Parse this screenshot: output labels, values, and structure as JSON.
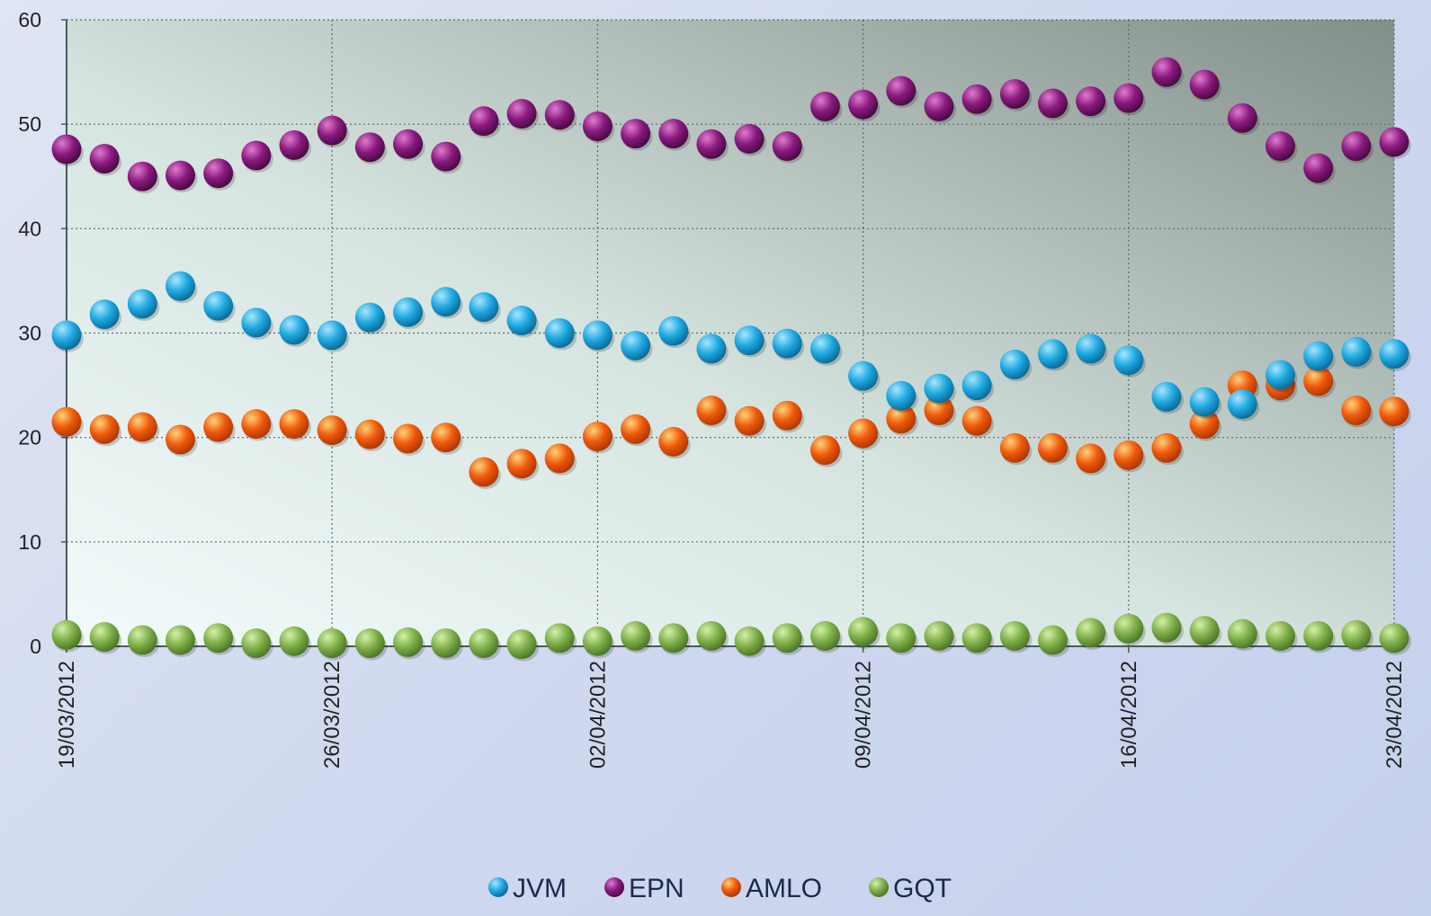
{
  "chart_data": {
    "type": "scatter",
    "title": "",
    "xlabel": "",
    "ylabel": "",
    "ylim": [
      0,
      60
    ],
    "y_ticks": [
      0,
      10,
      20,
      30,
      40,
      50,
      60
    ],
    "x_range": [
      "2012-03-19",
      "2012-04-23"
    ],
    "x_tick_labels": [
      "19/03/2012",
      "26/03/2012",
      "02/04/2012",
      "09/04/2012",
      "16/04/2012",
      "23/04/2012"
    ],
    "x": [
      "2012-03-19",
      "2012-03-20",
      "2012-03-21",
      "2012-03-22",
      "2012-03-23",
      "2012-03-24",
      "2012-03-25",
      "2012-03-26",
      "2012-03-27",
      "2012-03-28",
      "2012-03-29",
      "2012-03-30",
      "2012-03-31",
      "2012-04-01",
      "2012-04-02",
      "2012-04-03",
      "2012-04-04",
      "2012-04-05",
      "2012-04-06",
      "2012-04-07",
      "2012-04-08",
      "2012-04-09",
      "2012-04-10",
      "2012-04-11",
      "2012-04-12",
      "2012-04-13",
      "2012-04-14",
      "2012-04-15",
      "2012-04-16",
      "2012-04-17",
      "2012-04-18",
      "2012-04-19",
      "2012-04-20",
      "2012-04-21",
      "2012-04-22",
      "2012-04-23"
    ],
    "grid": true,
    "legend_position": "bottom",
    "series": [
      {
        "name": "JVM",
        "color": "#1fa9e1",
        "values": [
          29.8,
          31.8,
          32.8,
          34.5,
          32.6,
          31.0,
          30.3,
          29.8,
          31.5,
          32.0,
          33.0,
          32.5,
          31.2,
          30.0,
          29.8,
          28.8,
          30.2,
          28.5,
          29.3,
          29.0,
          28.5,
          25.9,
          24.0,
          24.7,
          25.0,
          27.0,
          28.0,
          28.5,
          27.4,
          23.9,
          23.4,
          23.2,
          26.0,
          27.8,
          28.2,
          28.0
        ]
      },
      {
        "name": "EPN",
        "color": "#8a1a7e",
        "values": [
          47.6,
          46.7,
          45.0,
          45.1,
          45.3,
          47.0,
          48.0,
          49.4,
          47.8,
          48.1,
          46.9,
          50.3,
          51.0,
          50.9,
          49.8,
          49.1,
          49.1,
          48.1,
          48.6,
          47.9,
          51.7,
          51.9,
          53.2,
          51.7,
          52.4,
          52.9,
          52.0,
          52.2,
          52.5,
          55.0,
          53.8,
          50.6,
          47.9,
          45.8,
          47.9,
          48.3
        ]
      },
      {
        "name": "AMLO",
        "color": "#f05a0a",
        "values": [
          21.5,
          20.8,
          21.0,
          19.8,
          21.0,
          21.3,
          21.3,
          20.7,
          20.3,
          19.9,
          20.0,
          16.7,
          17.5,
          18.0,
          20.1,
          20.8,
          19.6,
          22.6,
          21.6,
          22.1,
          18.8,
          20.4,
          21.8,
          22.6,
          21.6,
          19.0,
          19.0,
          18.0,
          18.3,
          19.0,
          21.3,
          25.0,
          25.0,
          25.4,
          22.6,
          22.5
        ]
      },
      {
        "name": "GQT",
        "color": "#7fb04a",
        "values": [
          1.1,
          0.9,
          0.6,
          0.6,
          0.8,
          0.3,
          0.5,
          0.3,
          0.3,
          0.4,
          0.3,
          0.3,
          0.2,
          0.8,
          0.5,
          1.0,
          0.8,
          1.0,
          0.5,
          0.8,
          1.0,
          1.4,
          0.8,
          1.0,
          0.8,
          1.0,
          0.6,
          1.3,
          1.7,
          1.8,
          1.5,
          1.2,
          1.0,
          1.0,
          1.1,
          0.8
        ]
      }
    ]
  }
}
